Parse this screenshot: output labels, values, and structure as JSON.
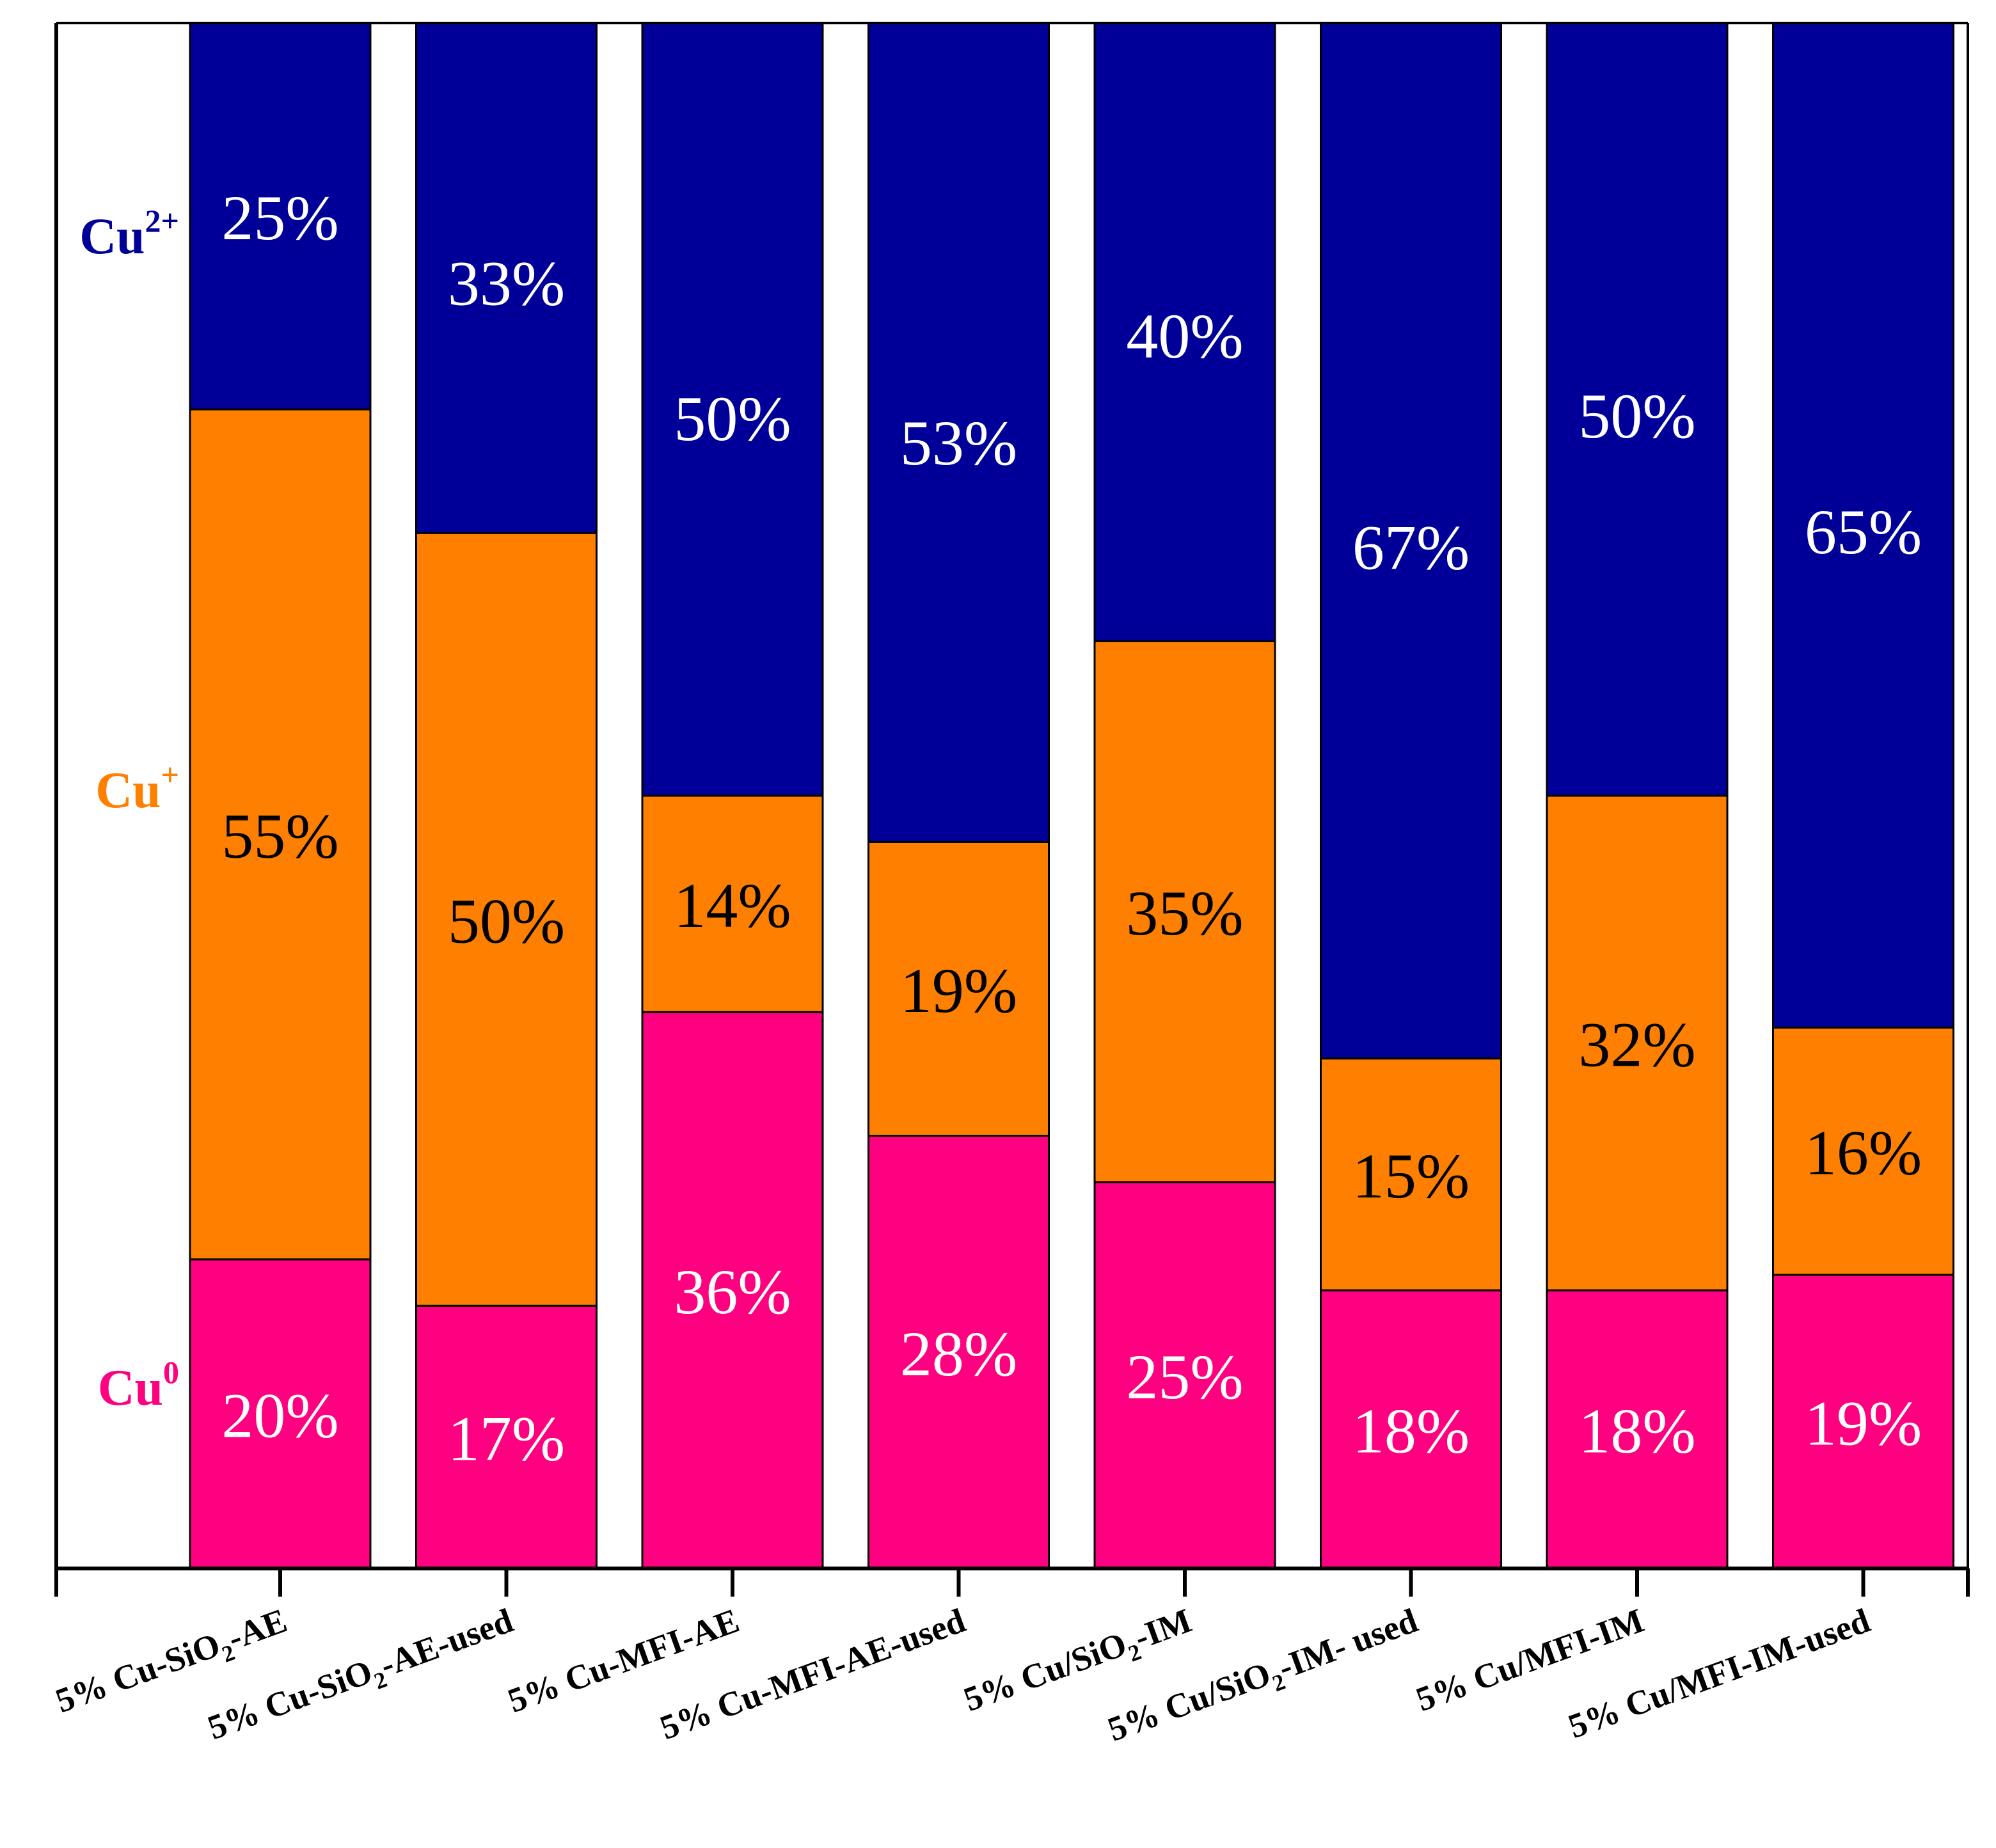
{
  "chart_data": {
    "type": "bar",
    "stacked": true,
    "percent_stacked": true,
    "title": "",
    "xlabel": "",
    "ylabel": "",
    "ylim": [
      0,
      100
    ],
    "categories": [
      {
        "pre": "5% Cu-SiO",
        "sub": "2",
        "post": "-AE"
      },
      {
        "pre": "5% Cu-SiO",
        "sub": "2",
        "post": "-AE-used"
      },
      {
        "pre": "5% Cu-MFI-AE",
        "sub": "",
        "post": ""
      },
      {
        "pre": "5% Cu-MFI-AE-used",
        "sub": "",
        "post": ""
      },
      {
        "pre": "5% Cu/SiO",
        "sub": "2",
        "post": "-IM"
      },
      {
        "pre": "5% Cu/SiO",
        "sub": "2",
        "post": "-IM- used"
      },
      {
        "pre": "5% Cu/MFI-IM",
        "sub": "",
        "post": ""
      },
      {
        "pre": "5% Cu/MFI-IM-used",
        "sub": "",
        "post": ""
      }
    ],
    "series": [
      {
        "key": "cu0",
        "name": "Cu",
        "sup": "0",
        "color": "#ff0080",
        "label_color": "#ffffff",
        "values": [
          20,
          17,
          36,
          28,
          25,
          18,
          18,
          19
        ],
        "labels": [
          "20%",
          "17%",
          "36%",
          "28%",
          "25%",
          "18%",
          "18%",
          "19%"
        ]
      },
      {
        "key": "cu1",
        "name": "Cu",
        "sup": "+",
        "color": "#ff8000",
        "label_color": "#000000",
        "values": [
          55,
          50,
          14,
          19,
          35,
          15,
          32,
          16
        ],
        "labels": [
          "55%",
          "50%",
          "14%",
          "19%",
          "35%",
          "15%",
          "32%",
          "16%"
        ]
      },
      {
        "key": "cu2",
        "name": "Cu",
        "sup": "2+",
        "color": "#000099",
        "label_color": "#ffffff",
        "values": [
          25,
          33,
          50,
          53,
          40,
          67,
          50,
          65
        ],
        "labels": [
          "25%",
          "33%",
          "50%",
          "53%",
          "40%",
          "67%",
          "50%",
          "65%"
        ]
      }
    ],
    "legend": "left"
  }
}
